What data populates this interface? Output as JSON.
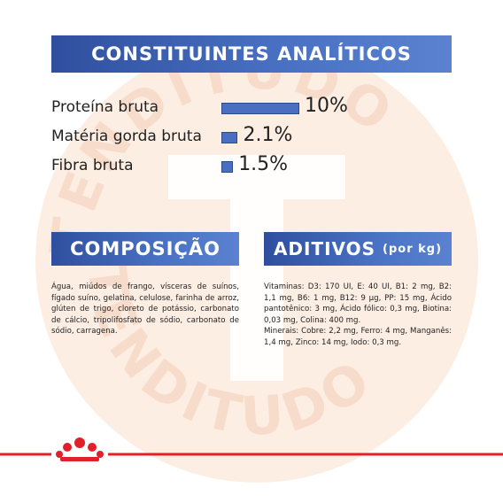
{
  "watermark": "TENDITUDO",
  "chart_data": {
    "type": "bar",
    "title": "CONSTITUINTES ANALÍTICOS",
    "categories": [
      "Proteína bruta",
      "Matéria gorda bruta",
      "Fibra bruta"
    ],
    "values": [
      10,
      2.1,
      1.5
    ],
    "value_labels": [
      "10%",
      "2.1%",
      "1.5%"
    ],
    "color": "#4a6fc0"
  },
  "composition": {
    "title": "COMPOSIÇÃO",
    "text": "Água, miúdos de frango, vísceras de suínos, fígado suíno, gelatina, celulose, farinha de arroz, glúten de trigo, cloreto de potássio, carbonato de cálcio, tripolifosfato de sódio, carbonato de sódio, carragena."
  },
  "additives": {
    "title": "ADITIVOS",
    "unit": "(por kg)",
    "text": "Vitaminas: D3: 170 UI, E: 40 UI, B1: 2 mg, B2: 1,1 mg, B6: 1 mg, B12: 9 µg, PP: 15 mg, Ácido pantotênico: 3 mg, Ácido fólico: 0,3 mg, Biotina: 0,03 mg, Colina: 400 mg.\nMinerais: Cobre: 2,2 mg, Ferro: 4 mg, Manganês: 1,4 mg, Zinco: 14 mg, Iodo: 0,3 mg."
  }
}
